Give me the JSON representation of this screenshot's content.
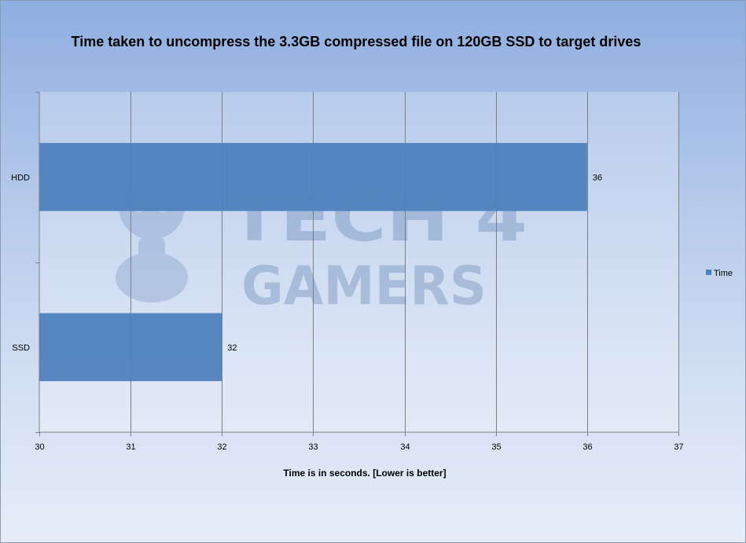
{
  "chart_data": {
    "type": "bar",
    "orientation": "horizontal",
    "title": "Time taken to uncompress  the 3.3GB compressed file on 120GB SSD to target drives",
    "xlabel": "Time is in seconds. [Lower is better]",
    "ylabel": "",
    "categories": [
      "HDD",
      "SSD"
    ],
    "series": [
      {
        "name": "Time",
        "values": [
          36,
          32
        ],
        "color": "#4f81bd"
      }
    ],
    "xlim": [
      30,
      37
    ],
    "xticks": [
      30,
      31,
      32,
      33,
      34,
      35,
      36,
      37
    ],
    "grid": "vertical",
    "legend_position": "right",
    "data_labels": true
  },
  "watermark": {
    "line1": "TECH 4",
    "line2": "GAMERS"
  }
}
